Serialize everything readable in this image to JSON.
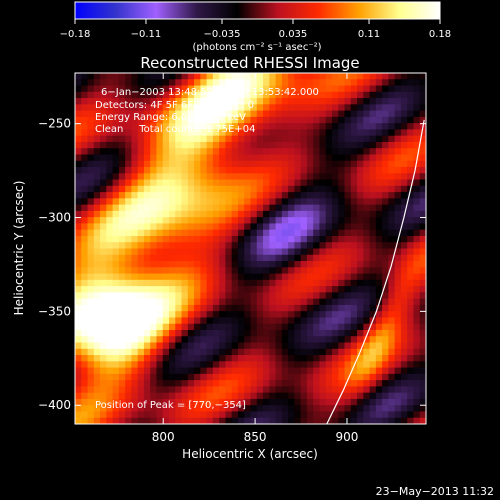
{
  "chart_data": {
    "type": "heatmap",
    "title": "Reconstructed RHESSI Image",
    "xlabel": "Heliocentric X (arcsec)",
    "ylabel": "Heliocentric Y (arcsec)",
    "xlim": [
      752,
      943
    ],
    "ylim": [
      -410,
      -223
    ],
    "x_ticks": [
      800,
      850,
      900
    ],
    "y_ticks": [
      -250,
      -300,
      -350,
      -400
    ],
    "colorbar": {
      "ticks": [
        -0.18,
        -0.11,
        -0.035,
        0.035,
        0.11,
        0.18
      ],
      "tick_labels": [
        "−0.18",
        "−0.11",
        "−0.035",
        "0.035",
        "0.11",
        "0.18"
      ],
      "label": "(photons cm⁻² s⁻¹ asec⁻²)",
      "range": [
        -0.18,
        0.18
      ]
    },
    "annotations": [
      "6−Jan−2003 13:48:52.000 to 13:53:42.000",
      "Detectors: 4F 5F 6F 7F 8F, Att 0",
      "Energy Range: 6.0 − 12.0 keV",
      "Clean     Total counts: 1.75E+04"
    ],
    "peak_label": "Position of Peak = [770,−354]",
    "peak": [
      770,
      -354
    ],
    "limb_curve": [
      [
        889,
        -410
      ],
      [
        898,
        -392
      ],
      [
        907,
        -372
      ],
      [
        916,
        -350
      ],
      [
        924,
        -326
      ],
      [
        931,
        -300
      ],
      [
        937,
        -275
      ],
      [
        942,
        -248
      ]
    ],
    "colormap": [
      "#0000ff",
      "#3333cc",
      "#a060ff",
      "#301848",
      "#000000",
      "#bb1020",
      "#ff2a00",
      "#ffa000",
      "#ffff90",
      "#ffffff"
    ]
  },
  "footer": {
    "date_stamp": "23−May−2013 11:32"
  }
}
